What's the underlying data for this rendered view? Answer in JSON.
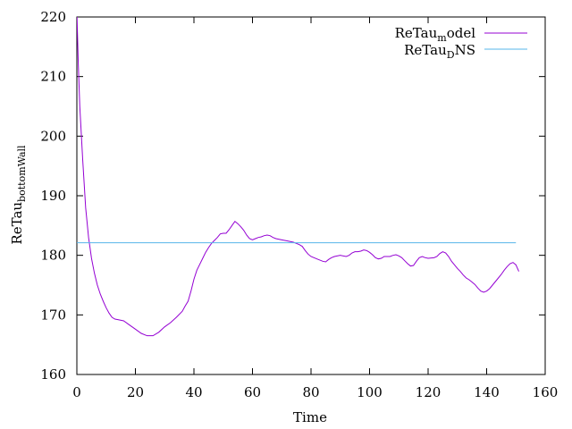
{
  "chart_data": {
    "type": "line",
    "xlabel": "Time",
    "ylabel": {
      "base": "ReTau",
      "sub": "bottomWall"
    },
    "xlim": [
      0,
      160
    ],
    "ylim": [
      160,
      220
    ],
    "x_ticks": [
      0,
      20,
      40,
      60,
      80,
      100,
      120,
      140,
      160
    ],
    "y_ticks": [
      160,
      170,
      180,
      190,
      200,
      210,
      220
    ],
    "grid": false,
    "legend_position": "top-right",
    "series": [
      {
        "name": "ReTau_model",
        "legend": {
          "base": "ReTau",
          "sub": "m",
          "rest": "odel"
        },
        "color": "#9400d3",
        "points": [
          [
            0,
            221
          ],
          [
            0.5,
            212
          ],
          [
            1,
            205
          ],
          [
            2,
            196
          ],
          [
            3,
            188
          ],
          [
            4,
            183
          ],
          [
            5,
            179.5
          ],
          [
            6,
            177
          ],
          [
            7,
            175
          ],
          [
            8,
            173.5
          ],
          [
            9,
            172.3
          ],
          [
            10,
            171.2
          ],
          [
            11,
            170.3
          ],
          [
            12,
            169.6
          ],
          [
            13,
            169.3
          ],
          [
            14,
            169.2
          ],
          [
            16,
            169
          ],
          [
            18,
            168.3
          ],
          [
            20,
            167.6
          ],
          [
            22,
            166.9
          ],
          [
            24,
            166.5
          ],
          [
            26,
            166.5
          ],
          [
            28,
            167.1
          ],
          [
            30,
            168
          ],
          [
            32,
            168.7
          ],
          [
            34,
            169.6
          ],
          [
            36,
            170.6
          ],
          [
            37,
            171.5
          ],
          [
            38,
            172.3
          ],
          [
            39,
            174
          ],
          [
            40,
            176
          ],
          [
            41,
            177.5
          ],
          [
            42,
            178.5
          ],
          [
            43,
            179.5
          ],
          [
            44,
            180.5
          ],
          [
            45,
            181.3
          ],
          [
            46,
            182
          ],
          [
            47,
            182.5
          ],
          [
            48,
            183
          ],
          [
            49,
            183.6
          ],
          [
            50,
            183.7
          ],
          [
            51,
            183.7
          ],
          [
            52,
            184.3
          ],
          [
            53,
            185
          ],
          [
            54,
            185.7
          ],
          [
            55,
            185.3
          ],
          [
            56,
            184.8
          ],
          [
            57,
            184.2
          ],
          [
            58,
            183.4
          ],
          [
            59,
            182.8
          ],
          [
            60,
            182.6
          ],
          [
            61,
            182.8
          ],
          [
            62,
            183
          ],
          [
            63,
            183.1
          ],
          [
            64,
            183.3
          ],
          [
            65,
            183.4
          ],
          [
            66,
            183.3
          ],
          [
            67,
            183
          ],
          [
            68,
            182.8
          ],
          [
            70,
            182.6
          ],
          [
            72,
            182.4
          ],
          [
            74,
            182.2
          ],
          [
            76,
            181.8
          ],
          [
            77,
            181.5
          ],
          [
            78,
            180.8
          ],
          [
            79,
            180.2
          ],
          [
            80,
            179.8
          ],
          [
            82,
            179.4
          ],
          [
            84,
            179
          ],
          [
            85,
            178.9
          ],
          [
            86,
            179.3
          ],
          [
            87,
            179.6
          ],
          [
            88,
            179.8
          ],
          [
            90,
            180
          ],
          [
            92,
            179.8
          ],
          [
            93,
            180
          ],
          [
            94,
            180.4
          ],
          [
            95,
            180.6
          ],
          [
            96,
            180.6
          ],
          [
            97,
            180.7
          ],
          [
            98,
            180.9
          ],
          [
            99,
            180.8
          ],
          [
            100,
            180.5
          ],
          [
            101,
            180.1
          ],
          [
            102,
            179.6
          ],
          [
            103,
            179.4
          ],
          [
            104,
            179.5
          ],
          [
            105,
            179.8
          ],
          [
            106,
            179.8
          ],
          [
            107,
            179.8
          ],
          [
            108,
            180
          ],
          [
            109,
            180.1
          ],
          [
            110,
            179.9
          ],
          [
            111,
            179.6
          ],
          [
            112,
            179.1
          ],
          [
            113,
            178.6
          ],
          [
            114,
            178.2
          ],
          [
            115,
            178.3
          ],
          [
            116,
            179
          ],
          [
            117,
            179.6
          ],
          [
            118,
            179.8
          ],
          [
            119,
            179.6
          ],
          [
            120,
            179.5
          ],
          [
            122,
            179.6
          ],
          [
            123,
            179.8
          ],
          [
            124,
            180.3
          ],
          [
            125,
            180.6
          ],
          [
            126,
            180.4
          ],
          [
            127,
            179.8
          ],
          [
            128,
            179
          ],
          [
            129,
            178.4
          ],
          [
            130,
            177.8
          ],
          [
            131,
            177.3
          ],
          [
            132,
            176.7
          ],
          [
            133,
            176.2
          ],
          [
            134,
            175.9
          ],
          [
            135,
            175.5
          ],
          [
            136,
            175.1
          ],
          [
            137,
            174.5
          ],
          [
            138,
            174
          ],
          [
            139,
            173.8
          ],
          [
            140,
            174
          ],
          [
            141,
            174.4
          ],
          [
            142,
            175
          ],
          [
            143,
            175.6
          ],
          [
            144,
            176.2
          ],
          [
            145,
            176.8
          ],
          [
            146,
            177.5
          ],
          [
            147,
            178.1
          ],
          [
            148,
            178.6
          ],
          [
            149,
            178.8
          ],
          [
            150,
            178.4
          ],
          [
            151,
            177.3
          ]
        ]
      },
      {
        "name": "ReTau_DNS",
        "legend": {
          "base": "ReTau",
          "sub": "D",
          "rest": "NS"
        },
        "color": "#56b4e9",
        "points": [
          [
            0,
            182.1
          ],
          [
            150,
            182.1
          ]
        ]
      }
    ]
  }
}
